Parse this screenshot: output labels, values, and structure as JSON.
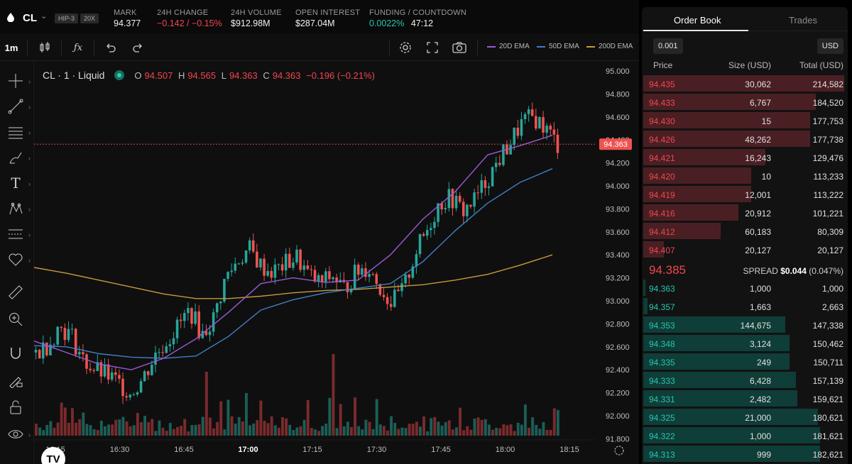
{
  "header": {
    "symbol": "CL",
    "badges": [
      "HIP-3",
      "20X"
    ],
    "mark": {
      "label": "MARK",
      "value": "94.377"
    },
    "change": {
      "label": "24H CHANGE",
      "value": "−0.142 / −0.15%"
    },
    "volume": {
      "label": "24H VOLUME",
      "value": "$912.98M"
    },
    "open_interest": {
      "label": "OPEN INTEREST",
      "value": "$287.04M"
    },
    "funding": {
      "label": "FUNDING / COUNTDOWN",
      "rate": "0.0022%",
      "countdown": "47:12"
    }
  },
  "toolbar": {
    "interval": "1m",
    "emas": [
      {
        "label": "20D EMA",
        "color": "#9b59d6"
      },
      {
        "label": "50D EMA",
        "color": "#3f7fc7"
      },
      {
        "label": "200D EMA",
        "color": "#c89a3c"
      }
    ]
  },
  "legend": {
    "title": "CL · 1 · Liquid",
    "o": "94.507",
    "h": "94.565",
    "l": "94.363",
    "c": "94.363",
    "chg": "−0.196 (−0.21%)"
  },
  "colors": {
    "up": "#26a69a",
    "down": "#ef5350",
    "ask_bar": "#4a1f23",
    "bid_bar": "#0f3d38"
  },
  "chart_data": {
    "type": "candlestick",
    "price_ticks": [
      "95.000",
      "94.800",
      "94.600",
      "94.400",
      "94.200",
      "94.000",
      "93.800",
      "93.600",
      "93.400",
      "93.200",
      "93.000",
      "92.800",
      "92.600",
      "92.400",
      "92.200",
      "92.000",
      "91.800"
    ],
    "time_ticks": [
      "16:15",
      "16:30",
      "16:45",
      "17:00",
      "17:15",
      "17:30",
      "17:45",
      "18:00",
      "18:15"
    ],
    "bold_time": "17:00",
    "last_price": "94.363",
    "ema200": [
      93.29,
      93.24,
      93.18,
      93.12,
      93.06,
      93.02,
      93.02,
      93.04,
      93.07,
      93.09,
      93.1,
      93.12,
      93.14,
      93.18,
      93.23,
      93.31,
      93.4
    ],
    "ema50": [
      92.61,
      92.6,
      92.54,
      92.51,
      92.5,
      92.52,
      92.69,
      92.92,
      93.01,
      93.07,
      93.11,
      93.15,
      93.34,
      93.61,
      93.85,
      94.03,
      94.15
    ],
    "ema20": [
      92.65,
      92.55,
      92.45,
      92.4,
      92.5,
      92.67,
      92.9,
      93.15,
      93.2,
      93.16,
      93.18,
      93.4,
      93.71,
      93.95,
      94.27,
      94.35,
      94.44
    ],
    "candles_close_trend": [
      92.55,
      92.62,
      92.78,
      92.7,
      92.48,
      92.4,
      92.35,
      92.28,
      92.2,
      92.32,
      92.52,
      92.65,
      92.78,
      92.92,
      92.7,
      92.85,
      93.2,
      93.35,
      93.45,
      93.3,
      93.25,
      93.32,
      93.38,
      93.22,
      93.15,
      93.22,
      93.1,
      93.25,
      93.3,
      93.12,
      92.98,
      93.1,
      93.42,
      93.62,
      93.85,
      93.9,
      93.78,
      93.88,
      94.05,
      94.22,
      94.38,
      94.55,
      94.6,
      94.5,
      94.36
    ]
  },
  "orderbook": {
    "tabs": [
      "Order Book",
      "Trades"
    ],
    "tick": "0.001",
    "currency": "USD",
    "columns": [
      "Price",
      "Size (USD)",
      "Total (USD)"
    ],
    "asks": [
      {
        "price": "94.435",
        "size": "30,062",
        "total": "214,582",
        "depth": 0.99
      },
      {
        "price": "94.433",
        "size": "6,767",
        "total": "184,520",
        "depth": 0.85
      },
      {
        "price": "94.430",
        "size": "15",
        "total": "177,753",
        "depth": 0.82
      },
      {
        "price": "94.426",
        "size": "48,262",
        "total": "177,738",
        "depth": 0.82
      },
      {
        "price": "94.421",
        "size": "16,243",
        "total": "129,476",
        "depth": 0.6
      },
      {
        "price": "94.420",
        "size": "10",
        "total": "113,233",
        "depth": 0.53
      },
      {
        "price": "94.419",
        "size": "12,001",
        "total": "113,222",
        "depth": 0.53
      },
      {
        "price": "94.416",
        "size": "20,912",
        "total": "101,221",
        "depth": 0.47
      },
      {
        "price": "94.412",
        "size": "60,183",
        "total": "80,309",
        "depth": 0.38
      },
      {
        "price": "94.407",
        "size": "20,127",
        "total": "20,127",
        "depth": 0.1
      }
    ],
    "mid": "94.385",
    "spread_label": "SPREAD",
    "spread_value": "$0.044",
    "spread_pct": "(0.047%)",
    "bids": [
      {
        "price": "94.363",
        "size": "1,000",
        "total": "1,000",
        "depth": 0.01
      },
      {
        "price": "94.357",
        "size": "1,663",
        "total": "2,663",
        "depth": 0.02
      },
      {
        "price": "94.353",
        "size": "144,675",
        "total": "147,338",
        "depth": 0.7
      },
      {
        "price": "94.348",
        "size": "3,124",
        "total": "150,462",
        "depth": 0.72
      },
      {
        "price": "94.335",
        "size": "249",
        "total": "150,711",
        "depth": 0.72
      },
      {
        "price": "94.333",
        "size": "6,428",
        "total": "157,139",
        "depth": 0.75
      },
      {
        "price": "94.331",
        "size": "2,482",
        "total": "159,621",
        "depth": 0.76
      },
      {
        "price": "94.325",
        "size": "21,000",
        "total": "180,621",
        "depth": 0.86
      },
      {
        "price": "94.322",
        "size": "1,000",
        "total": "181,621",
        "depth": 0.87
      },
      {
        "price": "94.313",
        "size": "999",
        "total": "182,621",
        "depth": 0.87
      }
    ]
  }
}
